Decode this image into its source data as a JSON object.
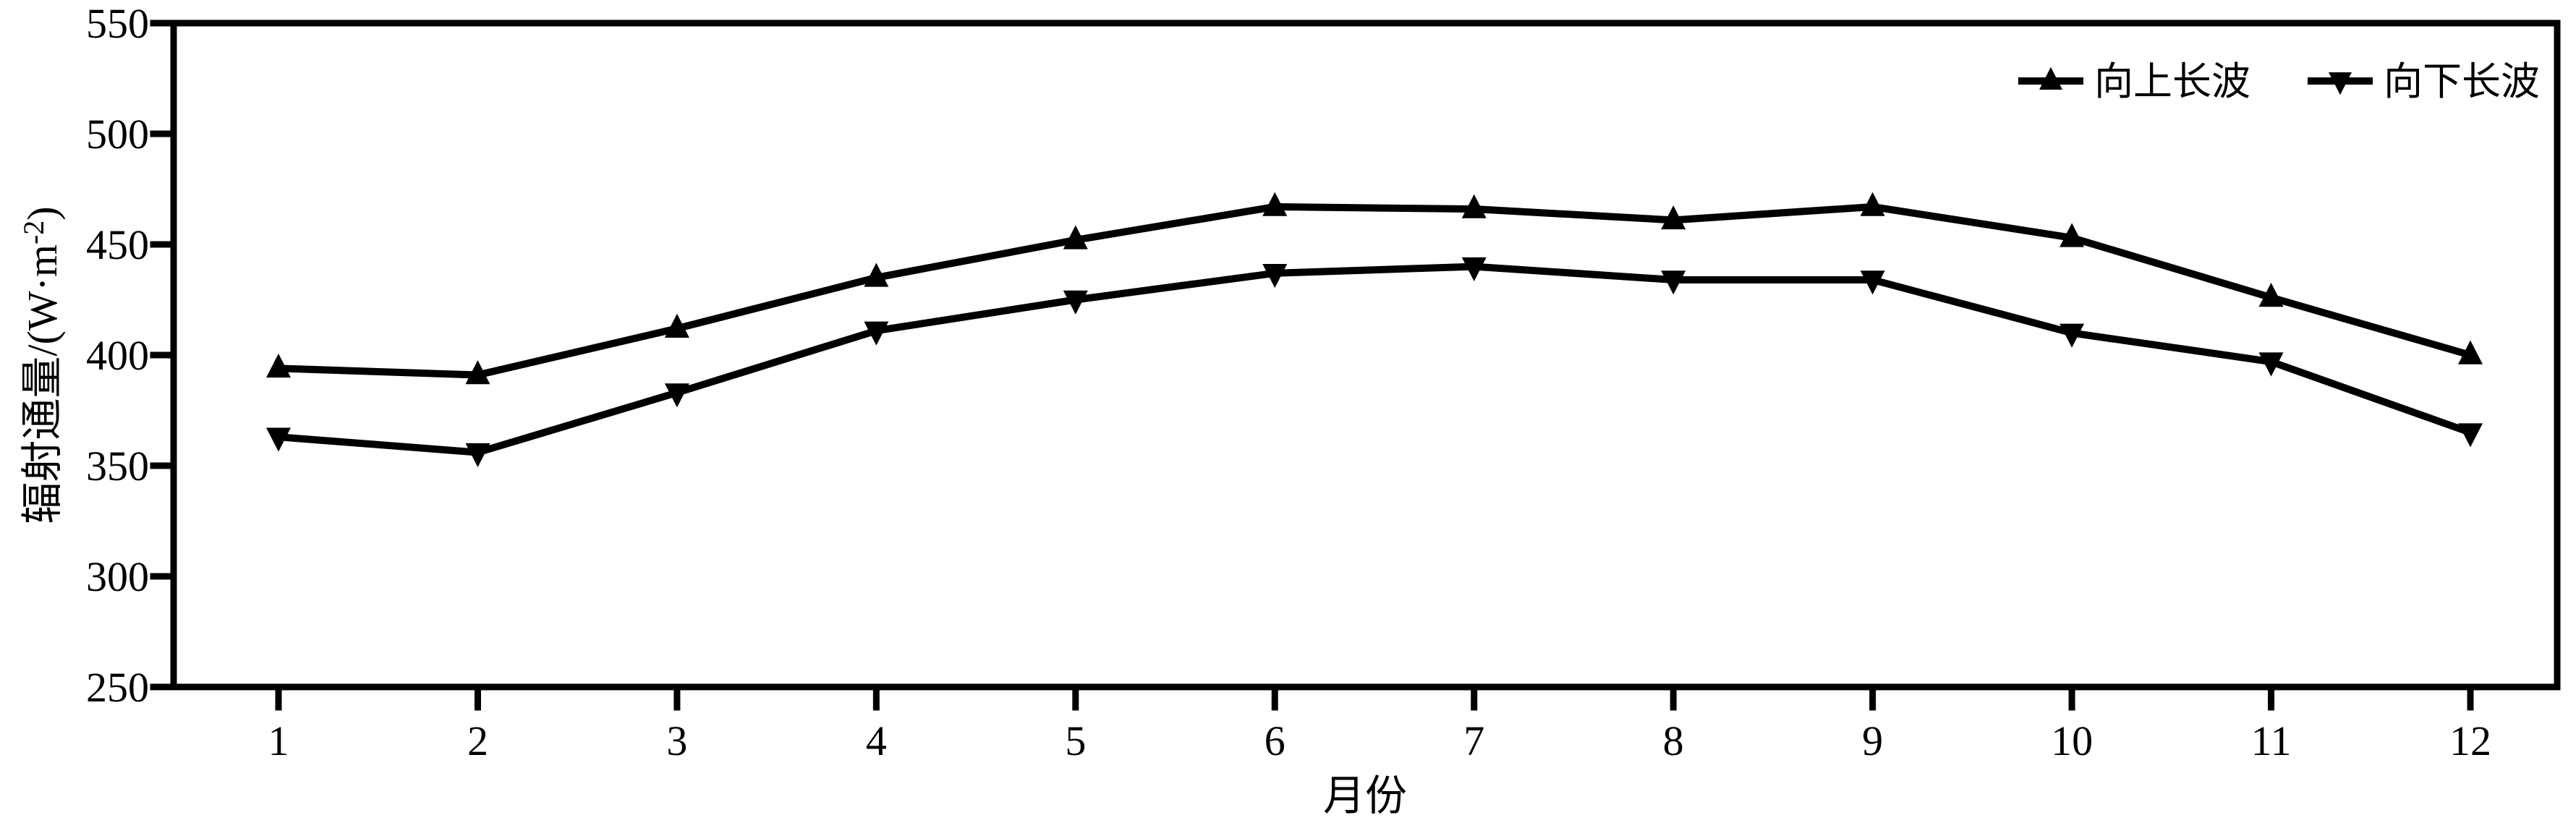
{
  "figure": {
    "background": "#ffffff",
    "ink_color": "#000000"
  },
  "chart_data": {
    "type": "line",
    "title": "",
    "xlabel": "月份",
    "ylabel": "辐射通量/(W·m⁻²)",
    "ylabel_parts": {
      "prefix": "辐射通量/(W·m",
      "superscript": "-2",
      "suffix": ")"
    },
    "x": [
      1,
      2,
      3,
      4,
      5,
      6,
      7,
      8,
      9,
      10,
      11,
      12
    ],
    "xticks": [
      "1",
      "2",
      "3",
      "4",
      "5",
      "6",
      "7",
      "8",
      "9",
      "10",
      "11",
      "12"
    ],
    "ylim": [
      250,
      550
    ],
    "yticks": [
      250,
      300,
      350,
      400,
      450,
      500,
      550
    ],
    "grid": false,
    "frame": "closed-box",
    "legend_position": "top-right-inside",
    "series": [
      {
        "name": "向上长波",
        "marker": "triangle-up",
        "color": "#000000",
        "values": [
          394,
          391,
          412,
          435,
          452,
          467,
          466,
          461,
          467,
          453,
          426,
          400
        ]
      },
      {
        "name": "向下长波",
        "marker": "triangle-down",
        "color": "#000000",
        "values": [
          363,
          356,
          383,
          411,
          425,
          437,
          440,
          434,
          434,
          410,
          397,
          365
        ]
      }
    ]
  }
}
